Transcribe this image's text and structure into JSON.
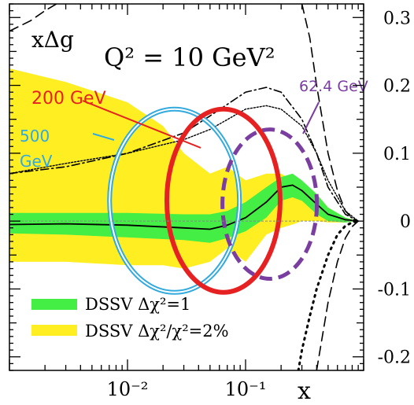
{
  "chart_data": {
    "type": "line",
    "title": "Q² = 10 GeV²",
    "ylabel": "xΔg",
    "xlabel": "x",
    "xscale": "log",
    "xlim": [
      0.001,
      1.0
    ],
    "ylim": [
      -0.22,
      0.32
    ],
    "xticks": [
      {
        "value": 0.01,
        "label": "10⁻²"
      },
      {
        "value": 0.1,
        "label": "10⁻¹"
      }
    ],
    "yticks": [
      {
        "value": 0.3,
        "label": "0.3"
      },
      {
        "value": 0.2,
        "label": "0.2"
      },
      {
        "value": 0.1,
        "label": "0.1"
      },
      {
        "value": 0,
        "label": "0"
      },
      {
        "value": -0.1,
        "label": "-0.1"
      },
      {
        "value": -0.2,
        "label": "-0.2"
      }
    ],
    "central": {
      "x": [
        0.001,
        0.003,
        0.01,
        0.03,
        0.05,
        0.07,
        0.1,
        0.15,
        0.2,
        0.25,
        0.3,
        0.4,
        0.5,
        0.7,
        0.9
      ],
      "y": [
        -0.005,
        -0.004,
        -0.006,
        -0.01,
        -0.012,
        -0.006,
        0.005,
        0.028,
        0.05,
        0.053,
        0.045,
        0.025,
        0.01,
        0.002,
        0.0
      ]
    },
    "band_dchi2_1": {
      "x": [
        0.001,
        0.003,
        0.01,
        0.03,
        0.05,
        0.07,
        0.1,
        0.15,
        0.2,
        0.25,
        0.3,
        0.4,
        0.5,
        0.7,
        0.9
      ],
      "upper": [
        0.012,
        0.012,
        0.012,
        0.01,
        0.01,
        0.015,
        0.028,
        0.05,
        0.065,
        0.07,
        0.06,
        0.04,
        0.02,
        0.005,
        0.0
      ],
      "lower": [
        -0.018,
        -0.02,
        -0.024,
        -0.028,
        -0.032,
        -0.025,
        -0.015,
        0.005,
        0.03,
        0.035,
        0.03,
        0.01,
        0.0,
        -0.002,
        0.0
      ]
    },
    "band_2pct": {
      "x": [
        0.001,
        0.003,
        0.01,
        0.02,
        0.03,
        0.05,
        0.07,
        0.1,
        0.15,
        0.2,
        0.25,
        0.3,
        0.4,
        0.5,
        0.7,
        0.9
      ],
      "upper": [
        0.225,
        0.205,
        0.175,
        0.14,
        0.1,
        0.07,
        0.08,
        0.06,
        0.07,
        0.07,
        0.06,
        0.05,
        0.04,
        0.02,
        0.005,
        0.0
      ],
      "lower": [
        -0.06,
        -0.06,
        -0.065,
        -0.065,
        -0.07,
        -0.06,
        -0.04,
        -0.06,
        -0.02,
        -0.01,
        -0.005,
        0.0,
        0.0,
        -0.002,
        -0.002,
        0.0
      ]
    },
    "other_curves": [
      {
        "style": "dashdot",
        "x": [
          0.001,
          0.003,
          0.01,
          0.03,
          0.05,
          0.1,
          0.15,
          0.2,
          0.3,
          0.4,
          0.5,
          0.7,
          0.9
        ],
        "y": [
          0.07,
          0.08,
          0.1,
          0.13,
          0.155,
          0.19,
          0.197,
          0.19,
          0.15,
          0.1,
          0.05,
          0.01,
          0.0
        ]
      },
      {
        "style": "dotted-fine",
        "x": [
          0.001,
          0.003,
          0.01,
          0.03,
          0.05,
          0.1,
          0.15,
          0.2,
          0.3,
          0.4,
          0.5,
          0.7,
          0.9
        ],
        "y": [
          0.07,
          0.085,
          0.1,
          0.12,
          0.135,
          0.165,
          0.17,
          0.165,
          0.14,
          0.1,
          0.06,
          0.015,
          0.0
        ]
      },
      {
        "style": "dashed",
        "x": [
          0.001,
          0.0015,
          0.002,
          0.0025
        ],
        "y": [
          0.28,
          0.295,
          0.31,
          0.32
        ]
      },
      {
        "style": "dashed",
        "x": [
          0.3,
          0.35,
          0.4,
          0.5,
          0.6,
          0.7,
          0.8,
          0.9
        ],
        "y": [
          0.32,
          0.27,
          0.2,
          0.1,
          0.045,
          0.015,
          0.004,
          0.0
        ]
      },
      {
        "style": "dashed",
        "x": [
          0.4,
          0.5,
          0.6,
          0.7,
          0.8,
          0.9
        ],
        "y": [
          -0.22,
          -0.12,
          -0.06,
          -0.025,
          -0.008,
          0.0
        ]
      },
      {
        "style": "dotted",
        "x": [
          0.28,
          0.3,
          0.35,
          0.4,
          0.5,
          0.6,
          0.7,
          0.8,
          0.9
        ],
        "y": [
          -0.22,
          -0.19,
          -0.14,
          -0.1,
          -0.05,
          -0.02,
          -0.007,
          -0.002,
          0.0
        ]
      }
    ],
    "ellipses": [
      {
        "label": "500 GeV",
        "color": "#33aadd",
        "cx": 0.025,
        "cy": 0.03,
        "rx_dec": 0.55,
        "ry": 0.135
      },
      {
        "label": "200 GeV",
        "color": "#e62121",
        "cx": 0.065,
        "cy": 0.03,
        "rx_dec": 0.48,
        "ry": 0.135
      },
      {
        "label": "62.4 GeV",
        "color": "#7a3da0",
        "cx": 0.16,
        "cy": 0.025,
        "rx_dec": 0.4,
        "ry": 0.11
      }
    ],
    "legend": {
      "placement": "bottom-left",
      "items": [
        {
          "label": "DSSV Δχ²=1",
          "color": "#44ee44"
        },
        {
          "label": "DSSV Δχ²/χ²=2%",
          "color": "#ffee22"
        }
      ]
    },
    "grid": false
  },
  "labels": {
    "ylabel": "xΔg",
    "title": "Q² = 10 GeV²",
    "xlabel": "x",
    "energy_200": "200 GeV",
    "energy_500_line1": "500",
    "energy_500_line2": "GeV",
    "energy_624": "62.4 GeV",
    "legend_1": "DSSV Δχ²=1",
    "legend_2": "DSSV Δχ²/χ²=2%"
  }
}
